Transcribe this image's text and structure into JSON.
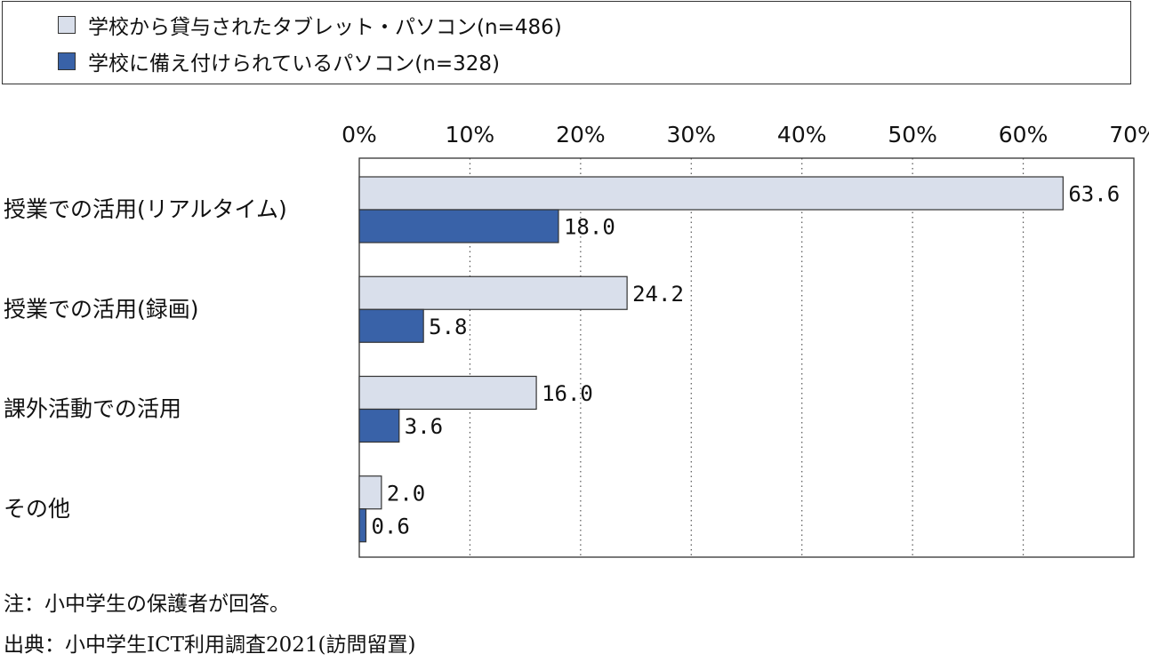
{
  "legend": [
    {
      "label": "学校から貸与されたタブレット・パソコン(n=486)",
      "color": "#d9dfeb"
    },
    {
      "label": "学校に備え付けられているパソコン(n=328)",
      "color": "#3962a8"
    }
  ],
  "chart_data": {
    "type": "bar",
    "orientation": "horizontal",
    "title": "",
    "xlabel": "",
    "ylabel": "",
    "xlim": [
      0,
      70
    ],
    "tick_values": [
      0,
      10,
      20,
      30,
      40,
      50,
      60,
      70
    ],
    "tick_labels": [
      "0%",
      "10%",
      "20%",
      "30%",
      "40%",
      "50%",
      "60%",
      "70%"
    ],
    "grid": "vertical dotted",
    "legend_position": "top",
    "categories": [
      "授業での活用(リアルタイム)",
      "授業での活用(録画)",
      "課外活動での活用",
      "その他"
    ],
    "series": [
      {
        "name": "学校から貸与されたタブレット・パソコン(n=486)",
        "color": "#d9dfeb",
        "values": [
          63.6,
          24.2,
          16.0,
          2.0
        ],
        "labels": [
          "63.6",
          "24.2",
          "16.0",
          "2.0"
        ]
      },
      {
        "name": "学校に備え付けられているパソコン(n=328)",
        "color": "#3962a8",
        "values": [
          18.0,
          5.8,
          3.6,
          0.6
        ],
        "labels": [
          "18.0",
          "5.8",
          "3.6",
          "0.6"
        ]
      }
    ]
  },
  "notes": {
    "note": "注：小中学生の保護者が回答。",
    "source": "出典：小中学生ICT利用調査2021(訪問留置)"
  }
}
